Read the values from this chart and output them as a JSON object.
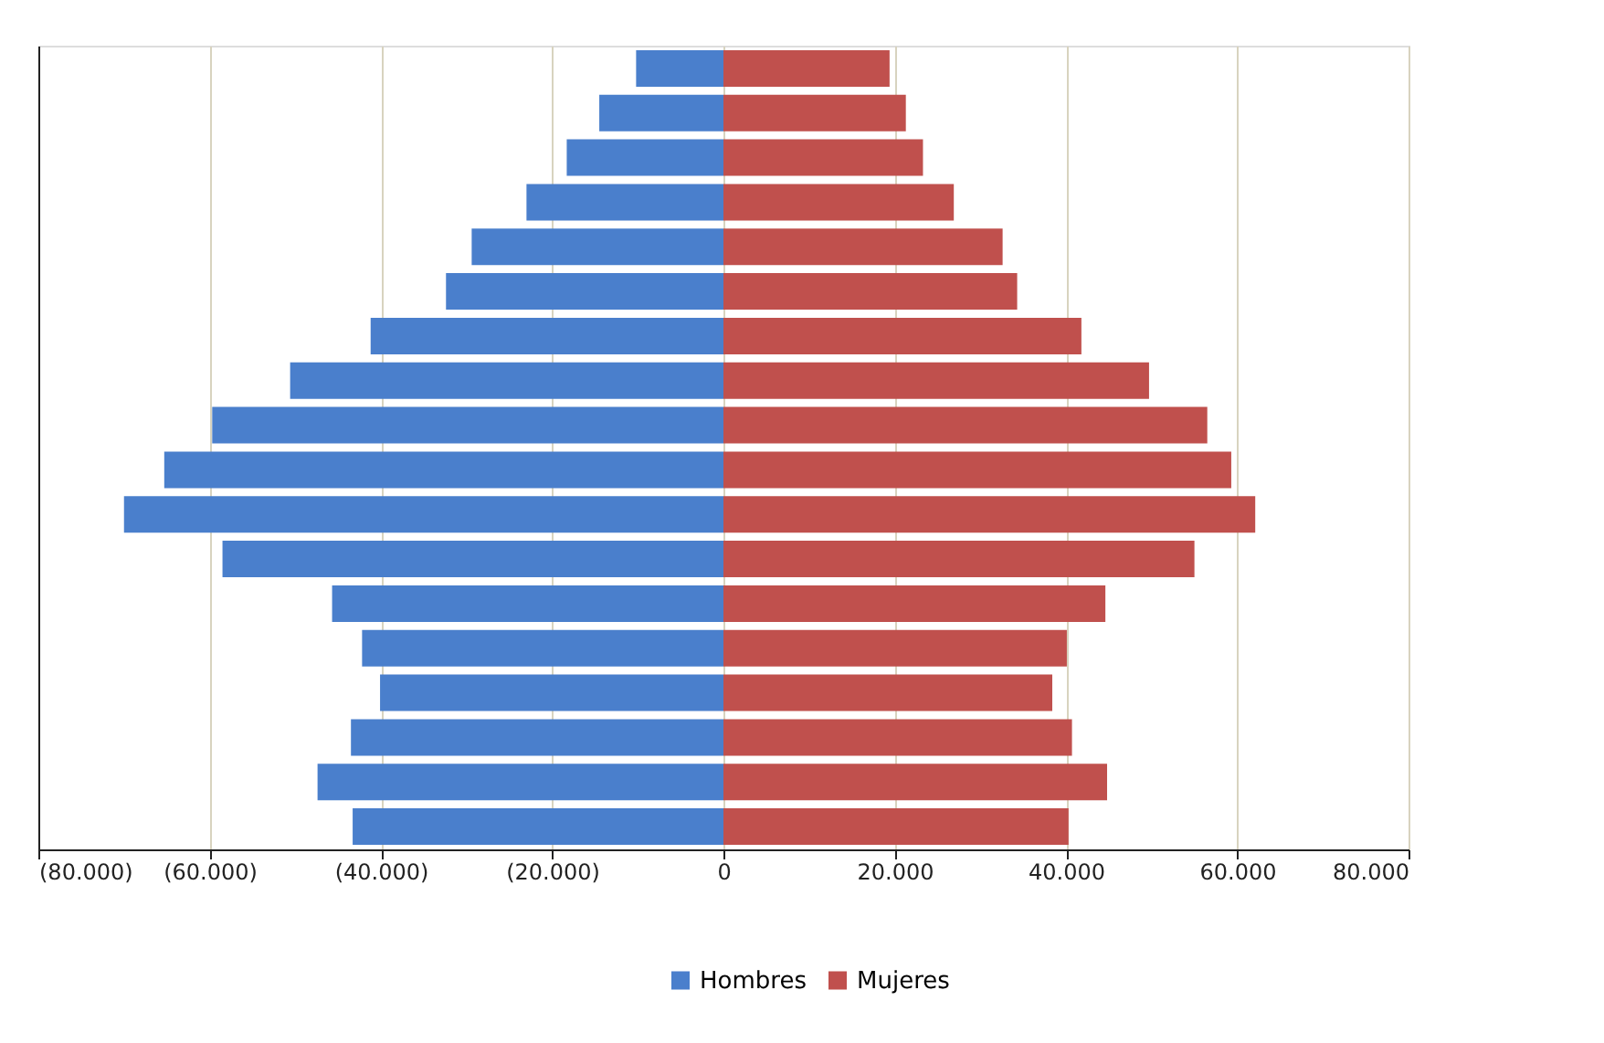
{
  "chart_data": {
    "type": "bar",
    "orientation": "horizontal",
    "categories": [
      null,
      null,
      null,
      null,
      null,
      null,
      null,
      null,
      null,
      null,
      null,
      null,
      null,
      null,
      null,
      null,
      null,
      null
    ],
    "series": [
      {
        "name": "Hombres",
        "color": "#4a7fcc",
        "values": [
          -10200,
          -14500,
          -18300,
          -23000,
          -29400,
          -32400,
          -41200,
          -50600,
          -59700,
          -65300,
          -70000,
          -58500,
          -45700,
          -42200,
          -40100,
          -43500,
          -47400,
          -43300
        ]
      },
      {
        "name": "Mujeres",
        "color": "#c0504d",
        "values": [
          19400,
          21300,
          23300,
          26900,
          32600,
          34300,
          41800,
          49700,
          56500,
          59300,
          62100,
          55000,
          44600,
          40100,
          38400,
          40700,
          44800,
          40300
        ]
      }
    ],
    "xlim": [
      -80000,
      80000
    ],
    "xticks": [
      {
        "value": -80000,
        "label": "(80.000)"
      },
      {
        "value": -60000,
        "label": "(60.000)"
      },
      {
        "value": -40000,
        "label": "(40.000)"
      },
      {
        "value": -20000,
        "label": "(20.000)"
      },
      0,
      {
        "value": 20000,
        "label": "20.000"
      },
      {
        "value": 40000,
        "label": "40.000"
      },
      {
        "value": 60000,
        "label": "60.000"
      },
      {
        "value": 80000,
        "label": "80.000"
      }
    ],
    "grid": "x",
    "legend": "bottom",
    "tick_labels": "x",
    "stacked": true
  }
}
